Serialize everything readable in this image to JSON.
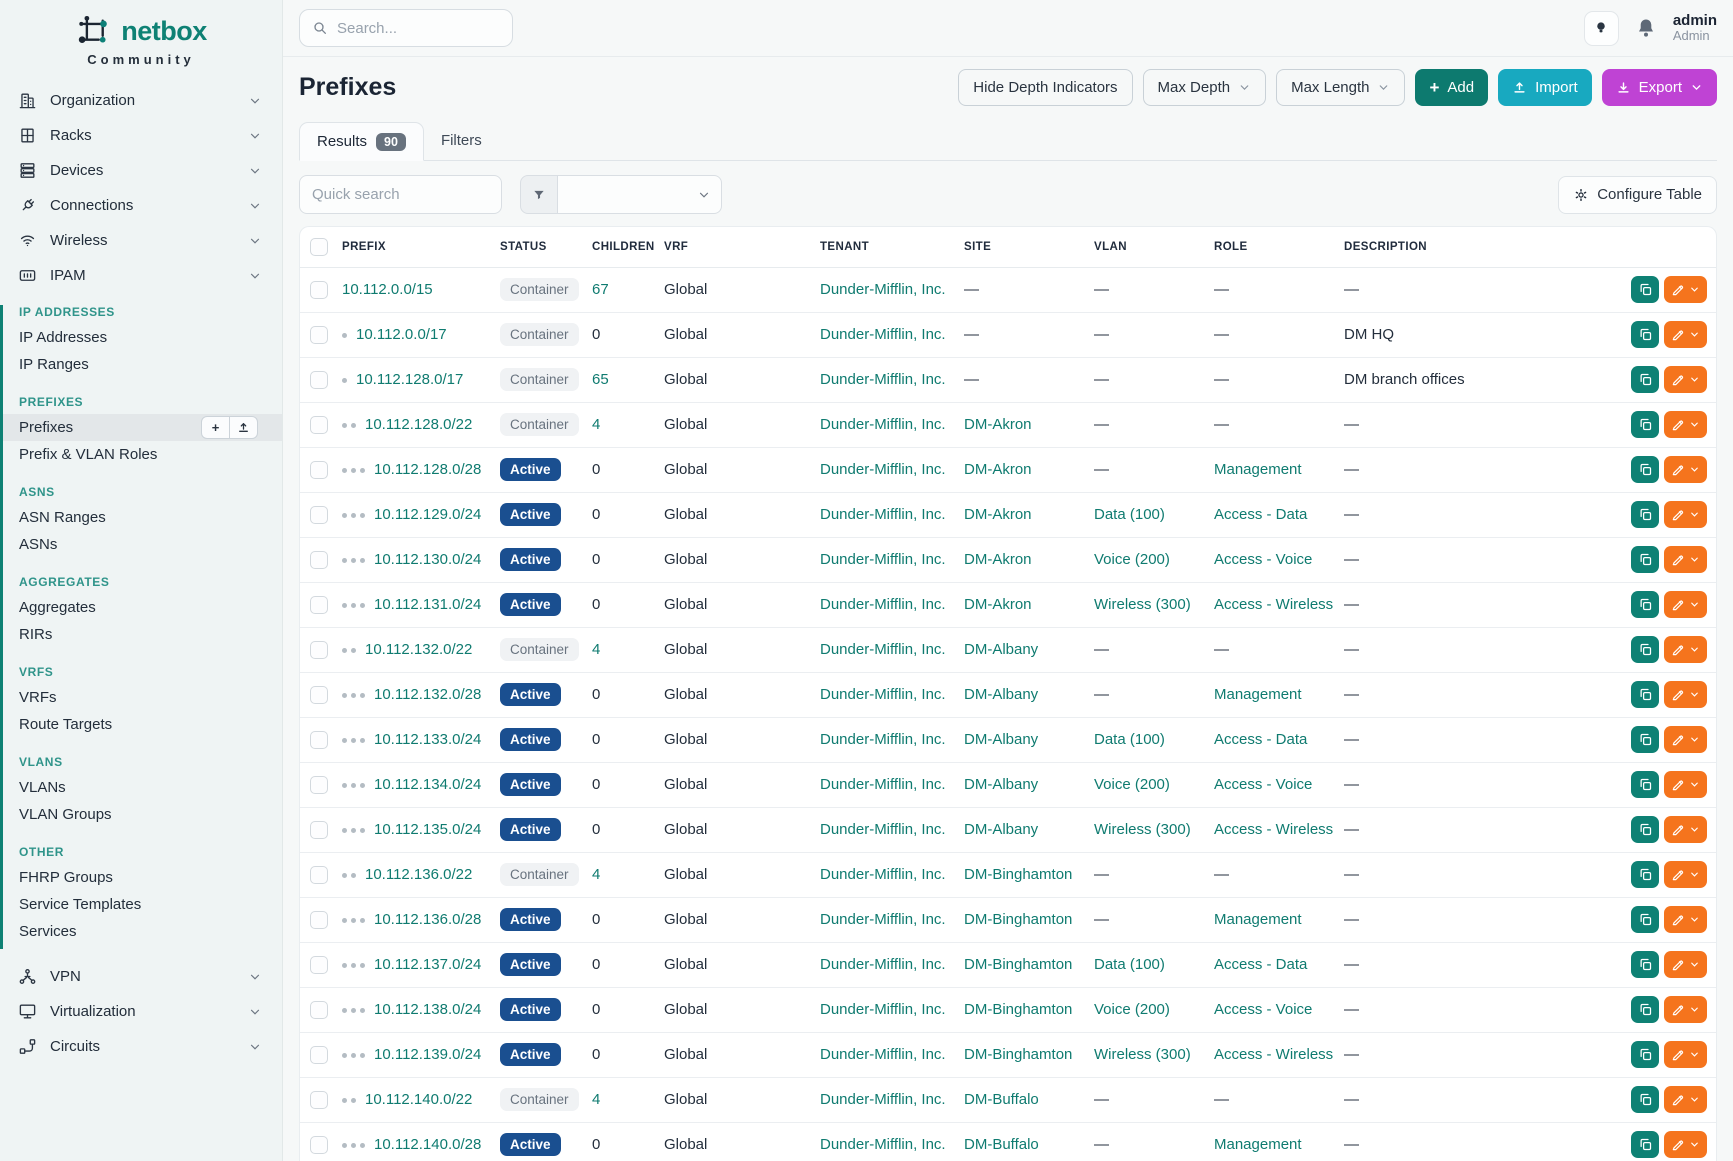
{
  "brand": {
    "name": "netbox",
    "subtitle": "Community"
  },
  "topbar": {
    "search_placeholder": "Search...",
    "user_name": "admin",
    "user_role": "Admin",
    "icons": [
      "lightbulb-icon",
      "bell-icon"
    ]
  },
  "sidebar": {
    "nav": [
      {
        "label": "Organization",
        "icon": "building-icon"
      },
      {
        "label": "Racks",
        "icon": "rack-icon"
      },
      {
        "label": "Devices",
        "icon": "server-icon"
      },
      {
        "label": "Connections",
        "icon": "plug-icon"
      },
      {
        "label": "Wireless",
        "icon": "wifi-icon"
      },
      {
        "label": "IPAM",
        "icon": "ipam-icon"
      }
    ],
    "ipam_groups": [
      {
        "heading": "IP ADDRESSES",
        "items": [
          {
            "label": "IP Addresses"
          },
          {
            "label": "IP Ranges"
          }
        ]
      },
      {
        "heading": "PREFIXES",
        "items": [
          {
            "label": "Prefixes",
            "active": true
          },
          {
            "label": "Prefix & VLAN Roles"
          }
        ]
      },
      {
        "heading": "ASNS",
        "items": [
          {
            "label": "ASN Ranges"
          },
          {
            "label": "ASNs"
          }
        ]
      },
      {
        "heading": "AGGREGATES",
        "items": [
          {
            "label": "Aggregates"
          },
          {
            "label": "RIRs"
          }
        ]
      },
      {
        "heading": "VRFS",
        "items": [
          {
            "label": "VRFs"
          },
          {
            "label": "Route Targets"
          }
        ]
      },
      {
        "heading": "VLANS",
        "items": [
          {
            "label": "VLANs"
          },
          {
            "label": "VLAN Groups"
          }
        ]
      },
      {
        "heading": "OTHER",
        "items": [
          {
            "label": "FHRP Groups"
          },
          {
            "label": "Service Templates"
          },
          {
            "label": "Services"
          }
        ]
      }
    ],
    "nav_bottom": [
      {
        "label": "VPN",
        "icon": "vpn-icon"
      },
      {
        "label": "Virtualization",
        "icon": "monitor-icon"
      },
      {
        "label": "Circuits",
        "icon": "circuit-icon"
      }
    ]
  },
  "page": {
    "title": "Prefixes",
    "toolbar": {
      "hide_depth_label": "Hide Depth Indicators",
      "max_depth_label": "Max Depth",
      "max_length_label": "Max Length",
      "add_label": "Add",
      "import_label": "Import",
      "export_label": "Export"
    },
    "tabs": {
      "results_label": "Results",
      "results_count": "90",
      "filters_label": "Filters"
    },
    "quick_search_placeholder": "Quick search",
    "configure_table_label": "Configure Table"
  },
  "table": {
    "columns": [
      "PREFIX",
      "STATUS",
      "CHILDREN",
      "VRF",
      "TENANT",
      "SITE",
      "VLAN",
      "ROLE",
      "DESCRIPTION"
    ],
    "rows": [
      {
        "depth": 0,
        "prefix": "10.112.0.0/15",
        "status": "Container",
        "children": "67",
        "vrf": "Global",
        "tenant": "Dunder-Mifflin, Inc.",
        "site": "—",
        "vlan": "—",
        "role": "—",
        "description": "—"
      },
      {
        "depth": 1,
        "prefix": "10.112.0.0/17",
        "status": "Container",
        "children": "0",
        "vrf": "Global",
        "tenant": "Dunder-Mifflin, Inc.",
        "site": "—",
        "vlan": "—",
        "role": "—",
        "description": "DM HQ"
      },
      {
        "depth": 1,
        "prefix": "10.112.128.0/17",
        "status": "Container",
        "children": "65",
        "vrf": "Global",
        "tenant": "Dunder-Mifflin, Inc.",
        "site": "—",
        "vlan": "—",
        "role": "—",
        "description": "DM branch offices"
      },
      {
        "depth": 2,
        "prefix": "10.112.128.0/22",
        "status": "Container",
        "children": "4",
        "vrf": "Global",
        "tenant": "Dunder-Mifflin, Inc.",
        "site": "DM-Akron",
        "vlan": "—",
        "role": "—",
        "description": "—"
      },
      {
        "depth": 3,
        "prefix": "10.112.128.0/28",
        "status": "Active",
        "children": "0",
        "vrf": "Global",
        "tenant": "Dunder-Mifflin, Inc.",
        "site": "DM-Akron",
        "vlan": "—",
        "role": "Management",
        "description": "—"
      },
      {
        "depth": 3,
        "prefix": "10.112.129.0/24",
        "status": "Active",
        "children": "0",
        "vrf": "Global",
        "tenant": "Dunder-Mifflin, Inc.",
        "site": "DM-Akron",
        "vlan": "Data (100)",
        "role": "Access - Data",
        "description": "—"
      },
      {
        "depth": 3,
        "prefix": "10.112.130.0/24",
        "status": "Active",
        "children": "0",
        "vrf": "Global",
        "tenant": "Dunder-Mifflin, Inc.",
        "site": "DM-Akron",
        "vlan": "Voice (200)",
        "role": "Access - Voice",
        "description": "—"
      },
      {
        "depth": 3,
        "prefix": "10.112.131.0/24",
        "status": "Active",
        "children": "0",
        "vrf": "Global",
        "tenant": "Dunder-Mifflin, Inc.",
        "site": "DM-Akron",
        "vlan": "Wireless (300)",
        "role": "Access - Wireless",
        "description": "—"
      },
      {
        "depth": 2,
        "prefix": "10.112.132.0/22",
        "status": "Container",
        "children": "4",
        "vrf": "Global",
        "tenant": "Dunder-Mifflin, Inc.",
        "site": "DM-Albany",
        "vlan": "—",
        "role": "—",
        "description": "—"
      },
      {
        "depth": 3,
        "prefix": "10.112.132.0/28",
        "status": "Active",
        "children": "0",
        "vrf": "Global",
        "tenant": "Dunder-Mifflin, Inc.",
        "site": "DM-Albany",
        "vlan": "—",
        "role": "Management",
        "description": "—"
      },
      {
        "depth": 3,
        "prefix": "10.112.133.0/24",
        "status": "Active",
        "children": "0",
        "vrf": "Global",
        "tenant": "Dunder-Mifflin, Inc.",
        "site": "DM-Albany",
        "vlan": "Data (100)",
        "role": "Access - Data",
        "description": "—"
      },
      {
        "depth": 3,
        "prefix": "10.112.134.0/24",
        "status": "Active",
        "children": "0",
        "vrf": "Global",
        "tenant": "Dunder-Mifflin, Inc.",
        "site": "DM-Albany",
        "vlan": "Voice (200)",
        "role": "Access - Voice",
        "description": "—"
      },
      {
        "depth": 3,
        "prefix": "10.112.135.0/24",
        "status": "Active",
        "children": "0",
        "vrf": "Global",
        "tenant": "Dunder-Mifflin, Inc.",
        "site": "DM-Albany",
        "vlan": "Wireless (300)",
        "role": "Access - Wireless",
        "description": "—"
      },
      {
        "depth": 2,
        "prefix": "10.112.136.0/22",
        "status": "Container",
        "children": "4",
        "vrf": "Global",
        "tenant": "Dunder-Mifflin, Inc.",
        "site": "DM-Binghamton",
        "vlan": "—",
        "role": "—",
        "description": "—"
      },
      {
        "depth": 3,
        "prefix": "10.112.136.0/28",
        "status": "Active",
        "children": "0",
        "vrf": "Global",
        "tenant": "Dunder-Mifflin, Inc.",
        "site": "DM-Binghamton",
        "vlan": "—",
        "role": "Management",
        "description": "—"
      },
      {
        "depth": 3,
        "prefix": "10.112.137.0/24",
        "status": "Active",
        "children": "0",
        "vrf": "Global",
        "tenant": "Dunder-Mifflin, Inc.",
        "site": "DM-Binghamton",
        "vlan": "Data (100)",
        "role": "Access - Data",
        "description": "—"
      },
      {
        "depth": 3,
        "prefix": "10.112.138.0/24",
        "status": "Active",
        "children": "0",
        "vrf": "Global",
        "tenant": "Dunder-Mifflin, Inc.",
        "site": "DM-Binghamton",
        "vlan": "Voice (200)",
        "role": "Access - Voice",
        "description": "—"
      },
      {
        "depth": 3,
        "prefix": "10.112.139.0/24",
        "status": "Active",
        "children": "0",
        "vrf": "Global",
        "tenant": "Dunder-Mifflin, Inc.",
        "site": "DM-Binghamton",
        "vlan": "Wireless (300)",
        "role": "Access - Wireless",
        "description": "—"
      },
      {
        "depth": 2,
        "prefix": "10.112.140.0/22",
        "status": "Container",
        "children": "4",
        "vrf": "Global",
        "tenant": "Dunder-Mifflin, Inc.",
        "site": "DM-Buffalo",
        "vlan": "—",
        "role": "—",
        "description": "—"
      },
      {
        "depth": 3,
        "prefix": "10.112.140.0/28",
        "status": "Active",
        "children": "0",
        "vrf": "Global",
        "tenant": "Dunder-Mifflin, Inc.",
        "site": "DM-Buffalo",
        "vlan": "—",
        "role": "Management",
        "description": "—"
      }
    ]
  },
  "colors": {
    "accent_teal": "#0e8174",
    "link_teal": "#0f7b70",
    "add_green": "#0d7a6f",
    "import_cyan": "#18a9c0",
    "export_purple": "#bf43d4",
    "edit_orange": "#f5741d",
    "active_badge_blue": "#1a4f90",
    "container_badge_bg": "#f0f2f4"
  }
}
